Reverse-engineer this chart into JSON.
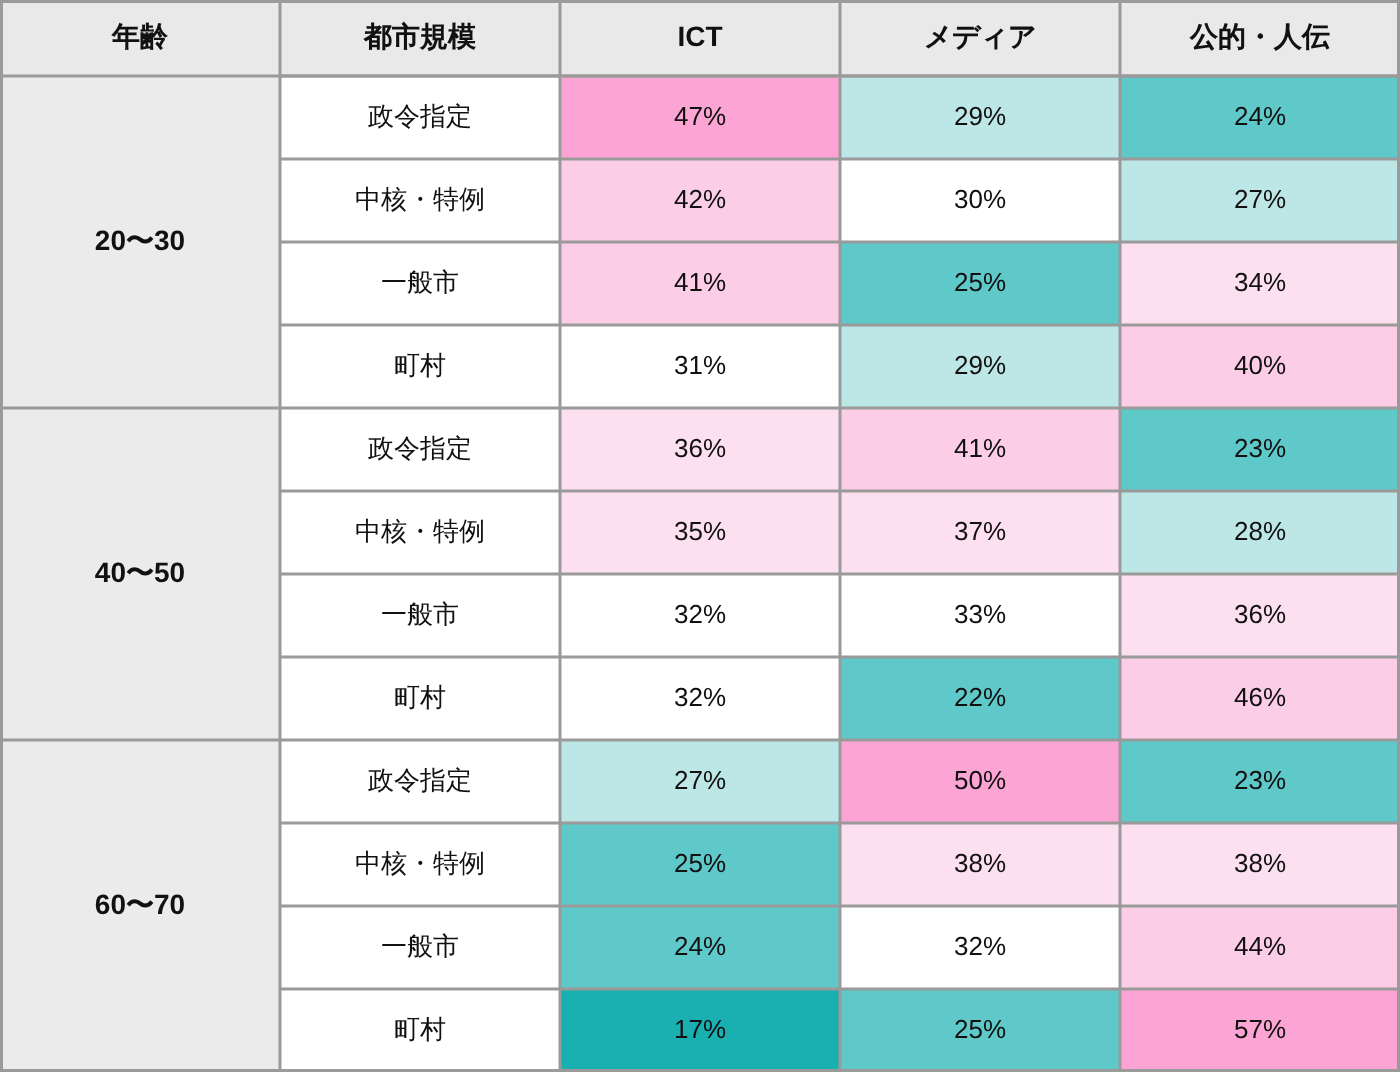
{
  "chart_data": {
    "type": "heatmap",
    "annotations": [
      "年齢",
      "都市規模",
      "20〜30",
      "40〜50",
      "60〜70"
    ],
    "categories": [
      "ICT",
      "メディア",
      "公的・人伝"
    ],
    "y_categories": [
      "政令指定",
      "中核・特例",
      "一般市",
      "町村",
      "政令指定",
      "中核・特例",
      "一般市",
      "町村",
      "政令指定",
      "中核・特例",
      "一般市",
      "町村"
    ],
    "cells": [
      [
        47,
        29,
        24
      ],
      [
        42,
        30,
        27
      ],
      [
        41,
        25,
        34
      ],
      [
        31,
        29,
        40
      ],
      [
        36,
        41,
        23
      ],
      [
        35,
        37,
        28
      ],
      [
        32,
        33,
        36
      ],
      [
        32,
        22,
        46
      ],
      [
        27,
        50,
        23
      ],
      [
        25,
        38,
        38
      ],
      [
        24,
        32,
        44
      ],
      [
        17,
        25,
        57
      ]
    ],
    "cell_labels": [
      [
        "47%",
        "29%",
        "24%"
      ],
      [
        "42%",
        "30%",
        "27%"
      ],
      [
        "41%",
        "25%",
        "34%"
      ],
      [
        "31%",
        "29%",
        "40%"
      ],
      [
        "36%",
        "41%",
        "23%"
      ],
      [
        "35%",
        "37%",
        "28%"
      ],
      [
        "32%",
        "33%",
        "36%"
      ],
      [
        "32%",
        "22%",
        "46%"
      ],
      [
        "27%",
        "50%",
        "23%"
      ],
      [
        "25%",
        "38%",
        "38%"
      ],
      [
        "24%",
        "32%",
        "44%"
      ],
      [
        "17%",
        "25%",
        "57%"
      ]
    ],
    "colors": [
      [
        "#fca5d4",
        "#bde6e7",
        "#5fc8c9"
      ],
      [
        "#fccde6",
        "#ffffff",
        "#bde6e7"
      ],
      [
        "#fccde6",
        "#5fc8c9",
        "#fde0ef"
      ],
      [
        "#ffffff",
        "#bde6e7",
        "#fccde6"
      ],
      [
        "#fde0ef",
        "#fccde6",
        "#5fc8c9"
      ],
      [
        "#fde0ef",
        "#fde0ef",
        "#bde6e7"
      ],
      [
        "#ffffff",
        "#ffffff",
        "#fde0ef"
      ],
      [
        "#ffffff",
        "#5fc8c9",
        "#fccde6"
      ],
      [
        "#bde6e7",
        "#fca5d4",
        "#5fc8c9"
      ],
      [
        "#5fc8c9",
        "#fde0ef",
        "#fde0ef"
      ],
      [
        "#5fc8c9",
        "#ffffff",
        "#fccde6"
      ],
      [
        "#1aafb0",
        "#5fc8c9",
        "#fca5d4"
      ]
    ]
  }
}
